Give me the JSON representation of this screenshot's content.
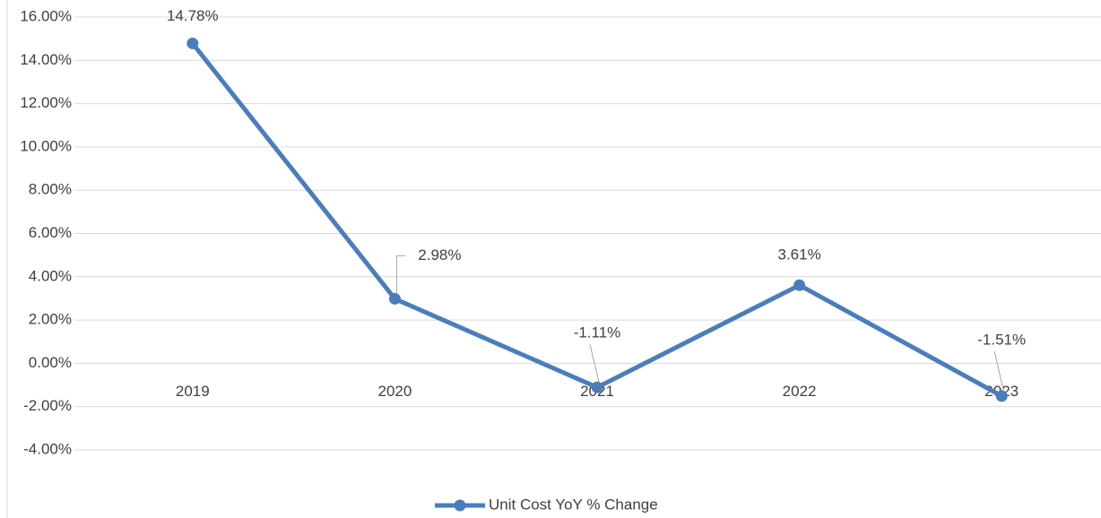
{
  "chart_data": {
    "type": "line",
    "categories": [
      "2019",
      "2020",
      "2021",
      "2022",
      "2023"
    ],
    "series": [
      {
        "name": "Unit Cost YoY % Change",
        "color": "#4a7ebb",
        "values": [
          14.78,
          2.98,
          -1.11,
          3.61,
          -1.51
        ],
        "value_labels": [
          "14.78%",
          "2.98%",
          "-1.11%",
          "3.61%",
          "-1.51%"
        ]
      }
    ],
    "ylim": [
      -4,
      16
    ],
    "yticks": [
      {
        "value": -4,
        "label": "-4.00%"
      },
      {
        "value": -2,
        "label": "-2.00%"
      },
      {
        "value": 0,
        "label": "0.00%"
      },
      {
        "value": 2,
        "label": "2.00%"
      },
      {
        "value": 4,
        "label": "4.00%"
      },
      {
        "value": 6,
        "label": "6.00%"
      },
      {
        "value": 8,
        "label": "8.00%"
      },
      {
        "value": 10,
        "label": "10.00%"
      },
      {
        "value": 12,
        "label": "12.00%"
      },
      {
        "value": 14,
        "label": "14.00%"
      },
      {
        "value": 16,
        "label": "16.00%"
      }
    ],
    "grid": true,
    "legend": "bottom"
  }
}
